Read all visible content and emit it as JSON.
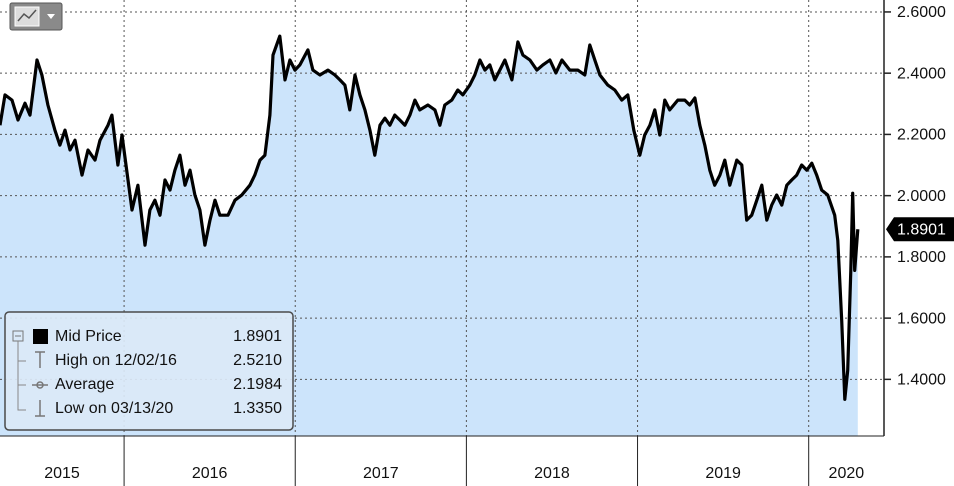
{
  "chart_data": {
    "type": "area",
    "x": [
      2015.275,
      2015.304,
      2015.345,
      2015.38,
      2015.421,
      2015.45,
      2015.491,
      2015.52,
      2015.555,
      2015.596,
      2015.625,
      2015.655,
      2015.684,
      2015.713,
      2015.754,
      2015.789,
      2015.83,
      2015.859,
      2015.906,
      2015.929,
      2015.964,
      2015.988,
      2016.023,
      2016.046,
      2016.081,
      2016.122,
      2016.151,
      2016.18,
      2016.21,
      2016.239,
      2016.268,
      2016.297,
      2016.326,
      2016.356,
      2016.385,
      2016.414,
      2016.443,
      2016.472,
      2016.502,
      2016.531,
      2016.56,
      2016.607,
      2016.648,
      2016.688,
      2016.735,
      2016.764,
      2016.794,
      2016.823,
      2016.852,
      2016.87,
      2016.91,
      2016.94,
      2016.969,
      2016.998,
      2017.027,
      2017.074,
      2017.103,
      2017.144,
      2017.191,
      2017.232,
      2017.261,
      2017.29,
      2017.319,
      2017.349,
      2017.378,
      2017.407,
      2017.436,
      2017.465,
      2017.495,
      2017.524,
      2017.553,
      2017.582,
      2017.611,
      2017.641,
      2017.67,
      2017.699,
      2017.728,
      2017.775,
      2017.816,
      2017.845,
      2017.874,
      2017.915,
      2017.95,
      2017.979,
      2018.02,
      2018.049,
      2018.079,
      2018.108,
      2018.137,
      2018.166,
      2018.195,
      2018.225,
      2018.266,
      2018.301,
      2018.33,
      2018.371,
      2018.412,
      2018.447,
      2018.488,
      2018.523,
      2018.558,
      2018.604,
      2018.651,
      2018.692,
      2018.721,
      2018.75,
      2018.78,
      2018.826,
      2018.867,
      2018.908,
      2018.943,
      2018.978,
      2019.013,
      2019.042,
      2019.072,
      2019.101,
      2019.13,
      2019.159,
      2019.188,
      2019.235,
      2019.276,
      2019.305,
      2019.335,
      2019.364,
      2019.393,
      2019.422,
      2019.451,
      2019.481,
      2019.51,
      2019.539,
      2019.58,
      2019.609,
      2019.638,
      2019.667,
      2019.697,
      2019.726,
      2019.755,
      2019.784,
      2019.813,
      2019.843,
      2019.872,
      2019.901,
      2019.93,
      2019.959,
      2019.989,
      2020.018,
      2020.047,
      2020.076,
      2020.111,
      2020.152,
      2020.17,
      2020.193,
      2020.211,
      2020.228,
      2020.246,
      2020.257,
      2020.269,
      2020.287
    ],
    "series": [
      {
        "name": "Mid Price",
        "color": "#000000",
        "fill": "#cce4fb",
        "values": [
          2.23,
          2.329,
          2.312,
          2.247,
          2.302,
          2.263,
          2.443,
          2.394,
          2.296,
          2.214,
          2.165,
          2.214,
          2.149,
          2.181,
          2.067,
          2.149,
          2.116,
          2.181,
          2.23,
          2.263,
          2.1,
          2.198,
          2.051,
          1.953,
          2.034,
          1.838,
          1.953,
          1.985,
          1.936,
          2.051,
          2.018,
          2.083,
          2.132,
          2.034,
          2.083,
          2.002,
          1.953,
          1.838,
          1.92,
          1.985,
          1.936,
          1.936,
          1.985,
          2.002,
          2.034,
          2.067,
          2.116,
          2.132,
          2.263,
          2.459,
          2.521,
          2.378,
          2.443,
          2.41,
          2.427,
          2.476,
          2.41,
          2.394,
          2.41,
          2.394,
          2.378,
          2.361,
          2.28,
          2.394,
          2.329,
          2.28,
          2.214,
          2.132,
          2.23,
          2.253,
          2.23,
          2.263,
          2.247,
          2.23,
          2.263,
          2.312,
          2.28,
          2.296,
          2.28,
          2.23,
          2.296,
          2.312,
          2.345,
          2.329,
          2.361,
          2.394,
          2.443,
          2.41,
          2.427,
          2.378,
          2.41,
          2.443,
          2.378,
          2.502,
          2.459,
          2.443,
          2.41,
          2.427,
          2.443,
          2.401,
          2.443,
          2.41,
          2.41,
          2.394,
          2.492,
          2.443,
          2.394,
          2.361,
          2.345,
          2.312,
          2.329,
          2.214,
          2.132,
          2.198,
          2.23,
          2.28,
          2.198,
          2.312,
          2.28,
          2.312,
          2.312,
          2.296,
          2.319,
          2.23,
          2.165,
          2.083,
          2.034,
          2.067,
          2.116,
          2.034,
          2.116,
          2.1,
          1.92,
          1.936,
          1.985,
          2.034,
          1.92,
          1.969,
          2.002,
          1.969,
          2.034,
          2.051,
          2.067,
          2.1,
          2.083,
          2.106,
          2.067,
          2.018,
          2.002,
          1.936,
          1.854,
          1.593,
          1.335,
          1.429,
          1.756,
          2.008,
          1.756,
          1.8901
        ]
      }
    ],
    "stats": [
      {
        "label": "High on 12/02/16",
        "value": 2.521,
        "value_label": "2.5210"
      },
      {
        "label": "Average",
        "value": 2.1984
      },
      {
        "label": "Low on 03/13/20",
        "value": 1.335,
        "value_label": "1.3350"
      }
    ],
    "xlim": [
      2015.275,
      2020.44
    ],
    "xticks": [
      2015,
      2016,
      2017,
      2018,
      2019,
      2020
    ],
    "ylim": [
      1.215,
      2.639
    ],
    "yticks": [
      {
        "value": 1.4,
        "label": "1.4000"
      },
      {
        "value": 1.6,
        "label": "1.6000"
      },
      {
        "value": 1.8,
        "label": "1.8000"
      },
      {
        "value": 2.0,
        "label": "2.0000"
      },
      {
        "value": 2.2,
        "label": "2.2000"
      },
      {
        "value": 2.4,
        "label": "2.4000"
      },
      {
        "value": 2.6,
        "label": "2.6000"
      }
    ],
    "grid": true
  }
}
